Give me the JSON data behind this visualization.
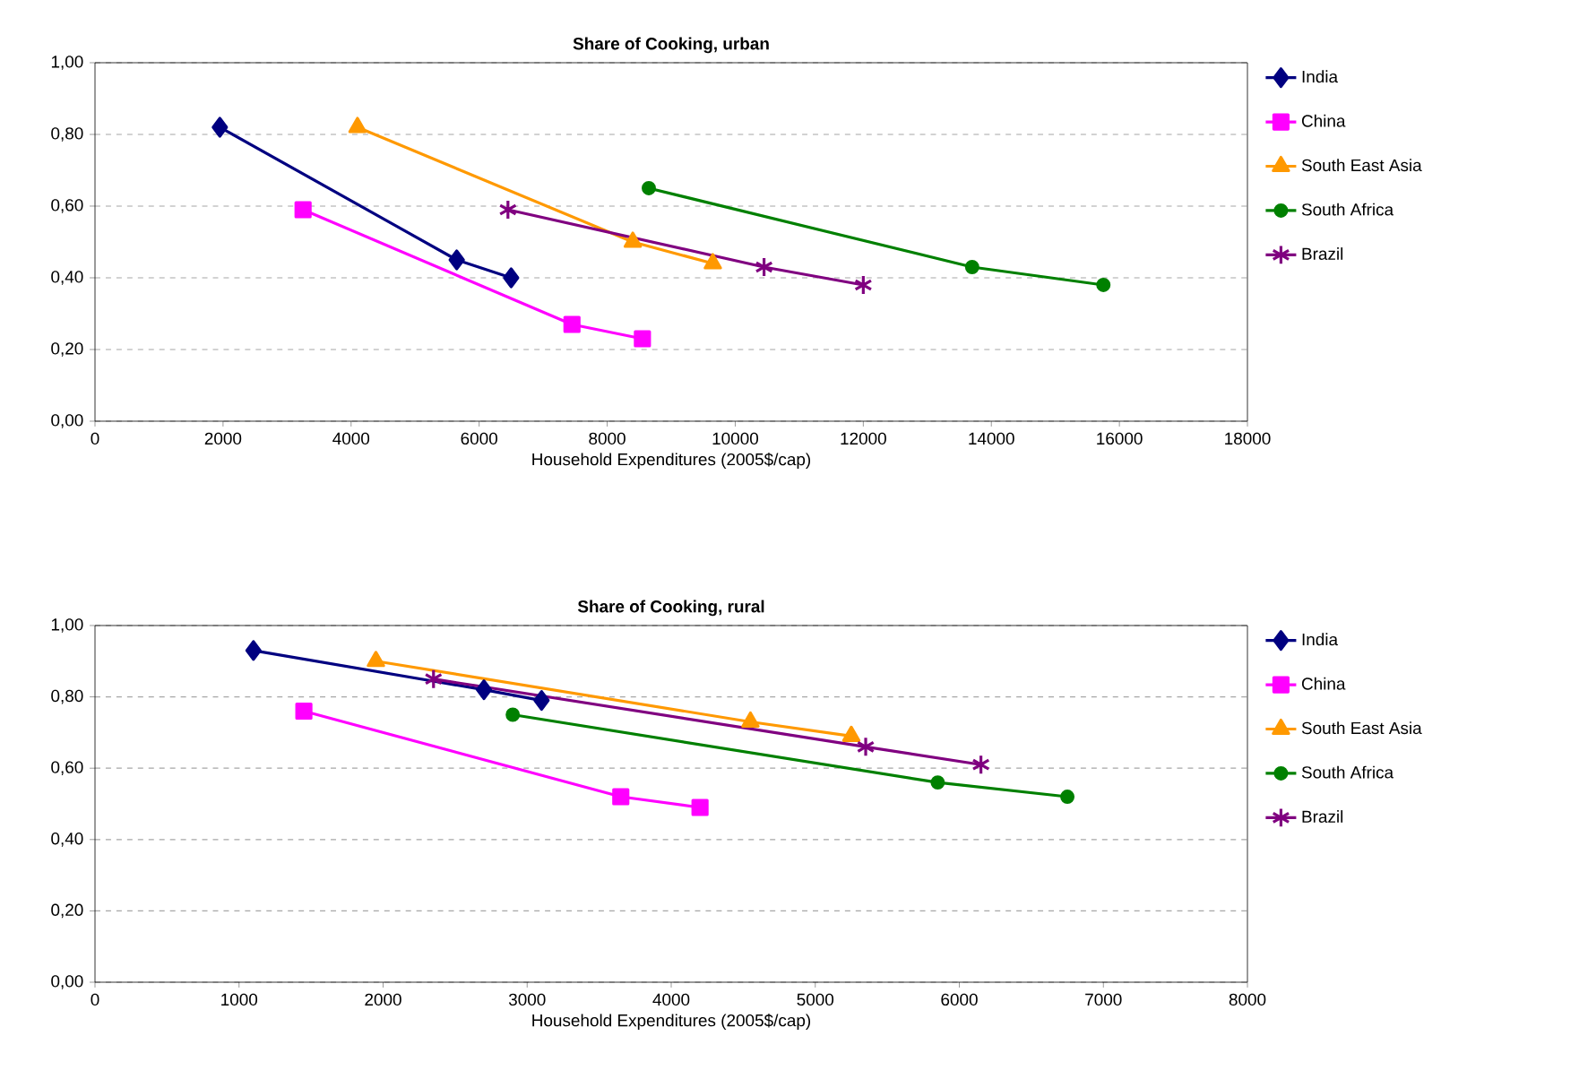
{
  "chart_data": [
    {
      "type": "line",
      "title": "Share of Cooking, urban",
      "xlabel": "Household Expenditures (2005$/cap)",
      "xlim": [
        0,
        18000
      ],
      "xticks": [
        0,
        2000,
        4000,
        6000,
        8000,
        10000,
        12000,
        14000,
        16000,
        18000
      ],
      "ylim": [
        0,
        1
      ],
      "yticks": [
        {
          "value": 0,
          "label": "0,00"
        },
        {
          "value": 0.2,
          "label": "0,20"
        },
        {
          "value": 0.4,
          "label": "0,40"
        },
        {
          "value": 0.6,
          "label": "0,60"
        },
        {
          "value": 0.8,
          "label": "0,80"
        },
        {
          "value": 1,
          "label": "1,00"
        }
      ],
      "grid": "y",
      "legend": "right",
      "series": [
        {
          "name": "India",
          "color": "#000080",
          "marker": "diamond",
          "x": [
            1950,
            5650,
            6500
          ],
          "values": [
            0.82,
            0.45,
            0.4
          ]
        },
        {
          "name": "China",
          "color": "#ff00ff",
          "marker": "square",
          "x": [
            3250,
            7450,
            8550
          ],
          "values": [
            0.59,
            0.27,
            0.23
          ]
        },
        {
          "name": "South East Asia",
          "color": "#ff9900",
          "marker": "triangle",
          "x": [
            4100,
            8400,
            9650
          ],
          "values": [
            0.82,
            0.5,
            0.44
          ]
        },
        {
          "name": "South Africa",
          "color": "#008000",
          "marker": "circle",
          "x": [
            8650,
            13700,
            15750
          ],
          "values": [
            0.65,
            0.43,
            0.38
          ]
        },
        {
          "name": "Brazil",
          "color": "#800080",
          "marker": "cross",
          "x": [
            6450,
            10450,
            12000
          ],
          "values": [
            0.59,
            0.43,
            0.38
          ]
        }
      ]
    },
    {
      "type": "line",
      "title": "Share of Cooking, rural",
      "xlabel": "Household Expenditures (2005$/cap)",
      "xlim": [
        0,
        8000
      ],
      "xticks": [
        0,
        1000,
        2000,
        3000,
        4000,
        5000,
        6000,
        7000,
        8000
      ],
      "ylim": [
        0,
        1
      ],
      "yticks": [
        {
          "value": 0,
          "label": "0,00"
        },
        {
          "value": 0.2,
          "label": "0,20"
        },
        {
          "value": 0.4,
          "label": "0,40"
        },
        {
          "value": 0.6,
          "label": "0,60"
        },
        {
          "value": 0.8,
          "label": "0,80"
        },
        {
          "value": 1,
          "label": "1,00"
        }
      ],
      "grid": "y",
      "legend": "right",
      "series": [
        {
          "name": "India",
          "color": "#000080",
          "marker": "diamond",
          "x": [
            1100,
            2700,
            3100
          ],
          "values": [
            0.93,
            0.82,
            0.79
          ]
        },
        {
          "name": "China",
          "color": "#ff00ff",
          "marker": "square",
          "x": [
            1450,
            3650,
            4200
          ],
          "values": [
            0.76,
            0.52,
            0.49
          ]
        },
        {
          "name": "South East Asia",
          "color": "#ff9900",
          "marker": "triangle",
          "x": [
            1950,
            4550,
            5250
          ],
          "values": [
            0.9,
            0.73,
            0.69
          ]
        },
        {
          "name": "South Africa",
          "color": "#008000",
          "marker": "circle",
          "x": [
            2900,
            5850,
            6750
          ],
          "values": [
            0.75,
            0.56,
            0.52
          ]
        },
        {
          "name": "Brazil",
          "color": "#800080",
          "marker": "cross",
          "x": [
            2350,
            5350,
            6150
          ],
          "values": [
            0.85,
            0.66,
            0.61
          ]
        }
      ]
    }
  ]
}
